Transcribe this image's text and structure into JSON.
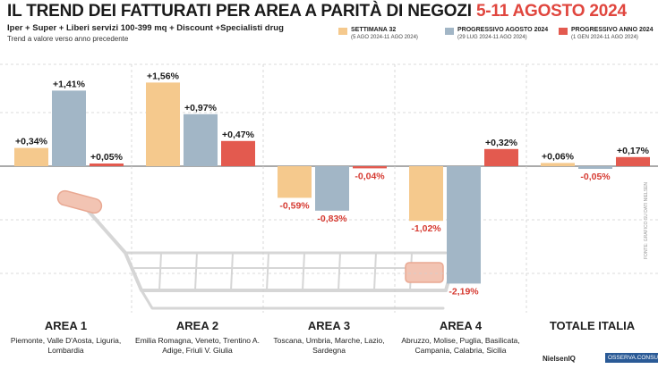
{
  "title": {
    "main": "IL TREND DEI FATTURATI PER AREA A PARITÀ DI NEGOZI",
    "highlight": "5-11 AGOSTO 2024"
  },
  "subtitle": "Iper + Super + Liberi servizi 100-399 mq + Discount +Specialisti drug",
  "note": "Trend a valore verso anno precedente",
  "legend": [
    {
      "name": "SETTIMANA 32",
      "sub": "(5 AGO 2024-11 AGO 2024)",
      "color": "#f5c98d"
    },
    {
      "name": "PROGRESSIVO AGOSTO 2024",
      "sub": "(29 LUG 2024-11 AGO 2024)",
      "color": "#a2b6c6"
    },
    {
      "name": "PROGRESSIVO ANNO 2024",
      "sub": "(1 GEN 2024-11 AGO 2024)",
      "color": "#e35a4f"
    }
  ],
  "areas": [
    {
      "name": "AREA 1",
      "regions": "Piemonte, Valle D'Aosta, Liguria, Lombardia"
    },
    {
      "name": "AREA 2",
      "regions": "Emilia Romagna, Veneto, Trentino A. Adige, Friuli V. Giulia"
    },
    {
      "name": "AREA 3",
      "regions": "Toscana, Umbria, Marche, Lazio, Sardegna"
    },
    {
      "name": "AREA 4",
      "regions": "Abruzzo, Molise, Puglia, Basilicata, Campania, Calabria, Sicilia"
    },
    {
      "name": "TOTALE ITALIA",
      "regions": ""
    }
  ],
  "chart_data": {
    "type": "bar",
    "categories": [
      "AREA 1",
      "AREA 2",
      "AREA 3",
      "AREA 4",
      "TOTALE ITALIA"
    ],
    "series": [
      {
        "name": "SETTIMANA 32",
        "values": [
          0.34,
          1.56,
          -0.59,
          -1.02,
          0.06
        ],
        "labels": [
          "+0,34%",
          "+1,56%",
          "-0,59%",
          "-1,02%",
          "+0,06%"
        ]
      },
      {
        "name": "PROGRESSIVO AGOSTO 2024",
        "values": [
          1.41,
          0.97,
          -0.83,
          -2.19,
          -0.05
        ],
        "labels": [
          "+1,41%",
          "+0,97%",
          "-0,83%",
          "-2,19%",
          "-0,05%"
        ]
      },
      {
        "name": "PROGRESSIVO ANNO 2024",
        "values": [
          0.05,
          0.47,
          -0.04,
          0.32,
          0.17
        ],
        "labels": [
          "+0,05%",
          "+0,47%",
          "-0,04%",
          "+0,32%",
          "+0,17%"
        ]
      }
    ],
    "colors": [
      "#f5c98d",
      "#a2b6c6",
      "#e35a4f"
    ],
    "label_colors": {
      "positive": "#1a1a1a",
      "negative": "#d63b32"
    },
    "ylim": [
      -2.3,
      1.8
    ],
    "grid": true
  },
  "source": "FONTE: GRAFICO SU DATI NIELSEN",
  "logos": [
    "NielsenIQ",
    "OSSERVA.CONSUMI"
  ]
}
